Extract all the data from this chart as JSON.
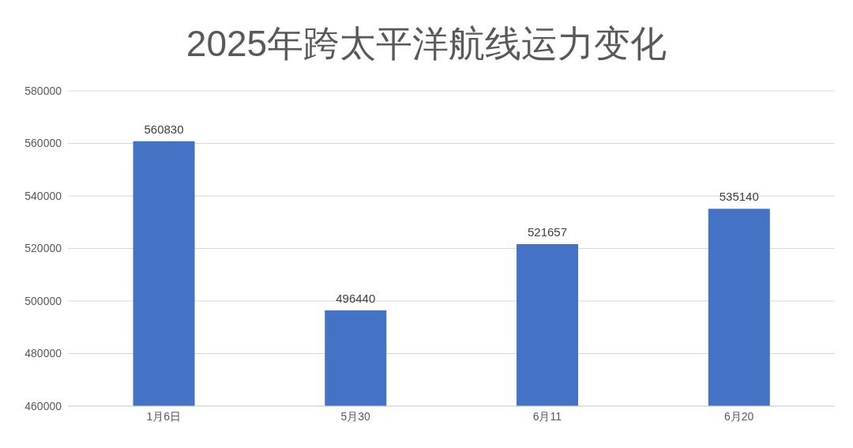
{
  "chart_data": {
    "type": "bar",
    "title": "2025年跨太平洋航线运力变化",
    "categories": [
      "1月6日",
      "5月30",
      "6月11",
      "6月20"
    ],
    "values": [
      560830,
      496440,
      521657,
      535140
    ],
    "color": "#4472c4",
    "ylim": [
      460000,
      580000
    ],
    "yticks": [
      460000,
      480000,
      500000,
      520000,
      540000,
      560000,
      580000
    ],
    "grid": "y",
    "data_labels": true
  }
}
